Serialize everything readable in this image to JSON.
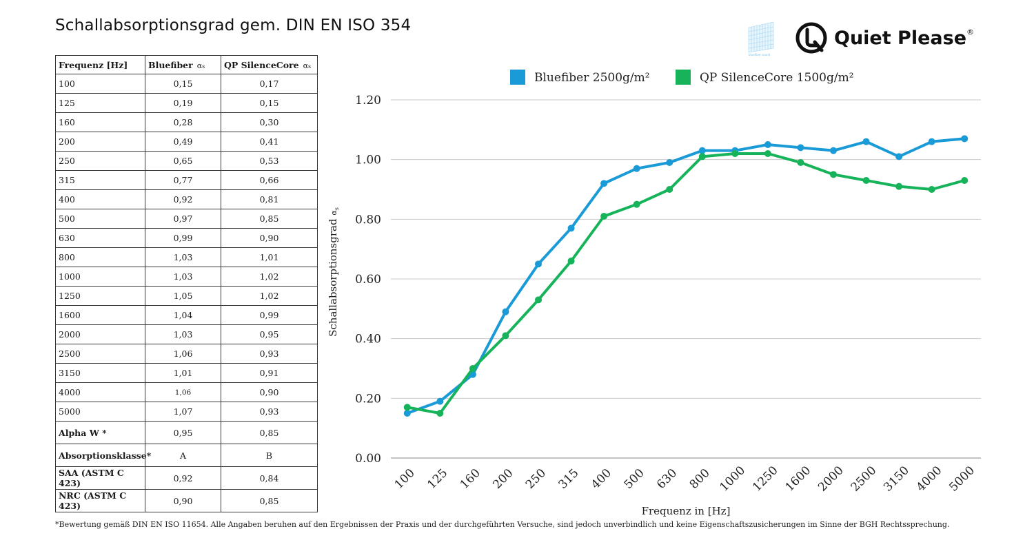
{
  "title": "Schallabsorptionsgrad gem. DIN EN ISO 354",
  "brand": {
    "name": "Quiet Please",
    "registered": "®",
    "logo_icon": "q-ring-logo-icon",
    "mark_icon": "bluefiber-panel-icon",
    "mark_text": "bluefiber sound"
  },
  "table": {
    "headers": {
      "freq": "Frequenz [Hz]",
      "col1": "Bluefiber",
      "col2": "QP SilenceCore",
      "sub": "α",
      "sub_index": "s"
    },
    "rows": [
      [
        "100",
        "0,15",
        "0,17"
      ],
      [
        "125",
        "0,19",
        "0,15"
      ],
      [
        "160",
        "0,28",
        "0,30"
      ],
      [
        "200",
        "0,49",
        "0,41"
      ],
      [
        "250",
        "0,65",
        "0,53"
      ],
      [
        "315",
        "0,77",
        "0,66"
      ],
      [
        "400",
        "0,92",
        "0,81"
      ],
      [
        "500",
        "0,97",
        "0,85"
      ],
      [
        "630",
        "0,99",
        "0,90"
      ],
      [
        "800",
        "1,03",
        "1,01"
      ],
      [
        "1000",
        "1,03",
        "1,02"
      ],
      [
        "1250",
        "1,05",
        "1,02"
      ],
      [
        "1600",
        "1,04",
        "0,99"
      ],
      [
        "2000",
        "1,03",
        "0,95"
      ],
      [
        "2500",
        "1,06",
        "0,93"
      ],
      [
        "3150",
        "1,01",
        "0,91"
      ],
      [
        "4000",
        "1,06",
        "0,90"
      ],
      [
        "5000",
        "1,07",
        "0,93"
      ]
    ],
    "summary": [
      [
        "Alpha W *",
        "0,95",
        "0,85"
      ],
      [
        "Absorptionsklasse*",
        "A",
        "B"
      ],
      [
        "SAA (ASTM C 423)",
        "0,92",
        "0,84"
      ],
      [
        "NRC (ASTM C 423)",
        "0,90",
        "0,85"
      ]
    ]
  },
  "chart_data": {
    "type": "line",
    "categories": [
      "100",
      "125",
      "160",
      "200",
      "250",
      "315",
      "400",
      "500",
      "630",
      "800",
      "1000",
      "1250",
      "1600",
      "2000",
      "2500",
      "3150",
      "4000",
      "5000"
    ],
    "series": [
      {
        "name": "Bluefiber 2500g/m²",
        "color": "#1a9ad6",
        "values": [
          0.15,
          0.19,
          0.28,
          0.49,
          0.65,
          0.77,
          0.92,
          0.97,
          0.99,
          1.03,
          1.03,
          1.05,
          1.04,
          1.03,
          1.06,
          1.01,
          1.06,
          1.07
        ]
      },
      {
        "name": "QP SilenceCore 1500g/m²",
        "color": "#16b35a",
        "values": [
          0.17,
          0.15,
          0.3,
          0.41,
          0.53,
          0.66,
          0.81,
          0.85,
          0.9,
          1.01,
          1.02,
          1.02,
          0.99,
          0.95,
          0.93,
          0.91,
          0.9,
          0.93
        ]
      }
    ],
    "yticks": [
      "0.00",
      "0.20",
      "0.40",
      "0.60",
      "0.80",
      "1.00",
      "1.20"
    ],
    "ylim": [
      0,
      1.2
    ],
    "xlabel": "Frequenz in [Hz]",
    "ylabel": "Schallabsorptionsgrad",
    "ylabel_symbol": "α",
    "ylabel_symbol_index": "s",
    "grid": true,
    "legend_position": "top"
  },
  "footnote": "*Bewertung gemäß DIN EN ISO 11654.  Alle Angaben beruhen auf den Ergebnissen der Praxis und der durchgeführten Versuche, sind jedoch unverbindlich und keine Eigenschaftszusicherungen im Sinne der BGH Rechtssprechung."
}
